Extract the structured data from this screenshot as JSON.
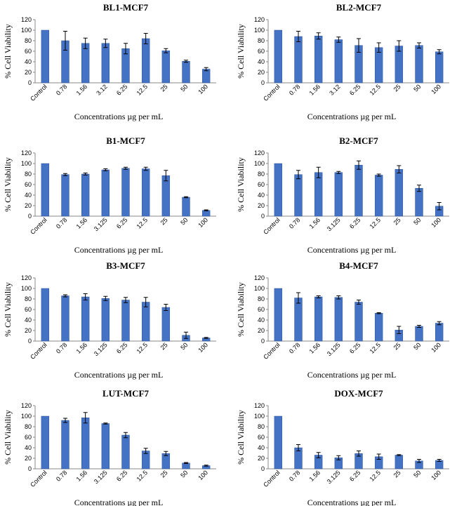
{
  "chart_data": [
    {
      "type": "bar",
      "title": "BL1-MCF7",
      "xlabel": "Concentrations µg per mL",
      "ylabel": "% Cell Viability",
      "ylim": [
        0,
        120
      ],
      "yticks": [
        0,
        20,
        40,
        60,
        80,
        100,
        120
      ],
      "categories": [
        "Control",
        "0.78",
        "1.56",
        "3.12",
        "6.25",
        "12.5",
        "25",
        "50",
        "100"
      ],
      "values": [
        100,
        80,
        75,
        75,
        65,
        84,
        61,
        41,
        26
      ],
      "errors": [
        0,
        18,
        10,
        8,
        10,
        10,
        4,
        2,
        3
      ]
    },
    {
      "type": "bar",
      "title": "BL2-MCF7",
      "xlabel": "Concentrations µg per mL",
      "ylabel": "% Cell Viability",
      "ylim": [
        0,
        120
      ],
      "yticks": [
        0,
        20,
        40,
        60,
        80,
        100,
        120
      ],
      "categories": [
        "Control",
        "0.78",
        "1.56",
        "3.12",
        "6.25",
        "12.5",
        "25",
        "50",
        "100"
      ],
      "values": [
        100,
        88,
        89,
        82,
        71,
        67,
        70,
        71,
        59
      ],
      "errors": [
        0,
        10,
        6,
        5,
        13,
        9,
        10,
        5,
        4
      ]
    },
    {
      "type": "bar",
      "title": "B1-MCF7",
      "xlabel": "Concentrations µg per mL",
      "ylabel": "% Cell Viability",
      "ylim": [
        0,
        120
      ],
      "yticks": [
        0,
        20,
        40,
        60,
        80,
        100,
        120
      ],
      "categories": [
        "Control",
        "0.78",
        "1.56",
        "3.125",
        "6.25",
        "12.5",
        "25",
        "50",
        "100"
      ],
      "values": [
        100,
        79,
        80,
        88,
        91,
        90,
        77,
        36,
        11
      ],
      "errors": [
        0,
        2,
        2,
        2,
        2,
        3,
        10,
        1,
        1
      ]
    },
    {
      "type": "bar",
      "title": "B2-MCF7",
      "xlabel": "Concentrations µg per mL",
      "ylabel": "% Cell Viability",
      "ylim": [
        0,
        120
      ],
      "yticks": [
        0,
        20,
        40,
        60,
        80,
        100,
        120
      ],
      "categories": [
        "Control",
        "0.78",
        "1.56",
        "3.125",
        "6.25",
        "12.5",
        "25",
        "50",
        "100"
      ],
      "values": [
        100,
        79,
        83,
        83,
        97,
        78,
        89,
        53,
        19
      ],
      "errors": [
        0,
        8,
        10,
        2,
        8,
        2,
        7,
        6,
        7
      ]
    },
    {
      "type": "bar",
      "title": "B3-MCF7",
      "xlabel": "Concentrations µg per mL",
      "ylabel": "% Cell Viability",
      "ylim": [
        0,
        120
      ],
      "yticks": [
        0,
        20,
        40,
        60,
        80,
        100,
        120
      ],
      "categories": [
        "Control",
        "0.78",
        "1.56",
        "3.125",
        "6.25",
        "12.5",
        "25",
        "50",
        "100"
      ],
      "values": [
        100,
        86,
        84,
        81,
        78,
        74,
        64,
        11,
        6
      ],
      "errors": [
        0,
        2,
        6,
        4,
        5,
        9,
        6,
        6,
        1
      ]
    },
    {
      "type": "bar",
      "title": "B4-MCF7",
      "xlabel": "Concentrations µg per mL",
      "ylabel": "% Cell Viability",
      "ylim": [
        0,
        120
      ],
      "yticks": [
        0,
        20,
        40,
        60,
        80,
        100,
        120
      ],
      "categories": [
        "Control",
        "0.78",
        "1.56",
        "3.125",
        "6.25",
        "12.5",
        "25",
        "50",
        "100"
      ],
      "values": [
        100,
        82,
        84,
        83,
        74,
        53,
        21,
        28,
        34
      ],
      "errors": [
        0,
        10,
        2,
        3,
        4,
        1,
        7,
        2,
        3
      ]
    },
    {
      "type": "bar",
      "title": "LUT-MCF7",
      "xlabel": "Concentrations µg per mL",
      "ylabel": "% Cell Viability",
      "ylim": [
        0,
        120
      ],
      "yticks": [
        0,
        20,
        40,
        60,
        80,
        100,
        120
      ],
      "categories": [
        "Control",
        "0.78",
        "1.56",
        "3.125",
        "6.25",
        "12.5",
        "25",
        "50",
        "100"
      ],
      "values": [
        100,
        92,
        97,
        86,
        64,
        34,
        29,
        11,
        6
      ],
      "errors": [
        0,
        4,
        10,
        1,
        5,
        5,
        4,
        1,
        1
      ]
    },
    {
      "type": "bar",
      "title": "DOX-MCF7",
      "xlabel": "Concentrations µg per mL",
      "ylabel": "% Cell Viability",
      "ylim": [
        0,
        120
      ],
      "yticks": [
        0,
        20,
        40,
        60,
        80,
        100,
        120
      ],
      "categories": [
        "Control",
        "0.78",
        "1.56",
        "3.125",
        "6.25",
        "12.5",
        "25",
        "50",
        "100"
      ],
      "values": [
        100,
        40,
        26,
        21,
        29,
        23,
        26,
        15,
        16
      ],
      "errors": [
        0,
        6,
        5,
        4,
        5,
        5,
        1,
        3,
        2
      ]
    }
  ]
}
